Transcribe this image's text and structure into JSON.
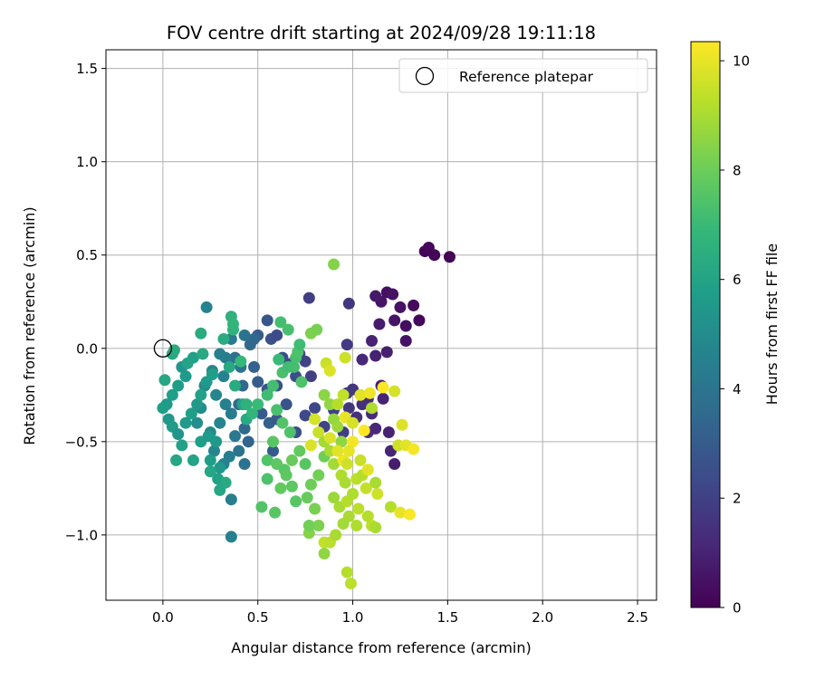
{
  "chart_data": {
    "type": "scatter",
    "title": "FOV centre drift starting at 2024/09/28 19:11:18",
    "xlabel": "Angular distance from reference (arcmin)",
    "ylabel": "Rotation from reference (arcmin)",
    "xlim": [
      -0.3,
      2.6
    ],
    "ylim": [
      -1.35,
      1.6
    ],
    "xticks": [
      0.0,
      0.5,
      1.0,
      1.5,
      2.0,
      2.5
    ],
    "xtick_labels": [
      "0.0",
      "0.5",
      "1.0",
      "1.5",
      "2.0",
      "2.5"
    ],
    "yticks": [
      -1.0,
      -0.5,
      0.0,
      0.5,
      1.0,
      1.5
    ],
    "ytick_labels": [
      "−1.0",
      "−0.5",
      "0.0",
      "0.5",
      "1.0",
      "1.5"
    ],
    "grid": true,
    "legend": {
      "placement": "top-right",
      "label": "Reference platepar"
    },
    "reference_point": {
      "x": 0.0,
      "y": 0.0
    },
    "colorbar": {
      "label": "Hours from first FF file",
      "range": [
        0,
        10.35
      ],
      "ticks": [
        0,
        2,
        4,
        6,
        8,
        10
      ],
      "tick_labels": [
        "0",
        "2",
        "4",
        "6",
        "8",
        "10"
      ],
      "colormap": "viridis",
      "stops": [
        "#440154",
        "#482878",
        "#3e4989",
        "#31688e",
        "#26828e",
        "#1f9e89",
        "#35b779",
        "#6ece58",
        "#b5de2b",
        "#fde725"
      ]
    },
    "points": [
      [
        1.38,
        0.52,
        0.1
      ],
      [
        1.4,
        0.54,
        0.2
      ],
      [
        1.43,
        0.5,
        0.1
      ],
      [
        1.51,
        0.49,
        0.0
      ],
      [
        1.18,
        0.3,
        0.4
      ],
      [
        1.21,
        0.29,
        0.5
      ],
      [
        1.15,
        0.25,
        0.6
      ],
      [
        1.25,
        0.22,
        0.5
      ],
      [
        1.32,
        0.23,
        0.3
      ],
      [
        1.12,
        0.28,
        0.7
      ],
      [
        1.22,
        0.15,
        0.6
      ],
      [
        1.28,
        0.12,
        0.4
      ],
      [
        1.35,
        0.15,
        0.2
      ],
      [
        1.14,
        0.13,
        0.8
      ],
      [
        1.1,
        0.04,
        1.0
      ],
      [
        1.28,
        0.04,
        0.5
      ],
      [
        0.98,
        0.24,
        1.6
      ],
      [
        0.97,
        0.02,
        1.8
      ],
      [
        0.77,
        0.27,
        1.9
      ],
      [
        1.05,
        -0.06,
        1.2
      ],
      [
        1.12,
        -0.04,
        1.0
      ],
      [
        1.18,
        -0.02,
        0.9
      ],
      [
        1.0,
        -0.22,
        1.6
      ],
      [
        1.08,
        -0.27,
        1.3
      ],
      [
        1.15,
        -0.2,
        0.9
      ],
      [
        1.16,
        -0.27,
        1.0
      ],
      [
        1.08,
        -0.45,
        1.4
      ],
      [
        1.12,
        -0.43,
        1.2
      ],
      [
        1.19,
        -0.45,
        1.0
      ],
      [
        1.2,
        -0.55,
        1.1
      ],
      [
        1.22,
        -0.62,
        0.8
      ],
      [
        1.02,
        -0.37,
        1.5
      ],
      [
        0.98,
        -0.32,
        1.7
      ],
      [
        0.97,
        -0.24,
        1.8
      ],
      [
        0.9,
        -0.33,
        2.0
      ],
      [
        0.95,
        -0.45,
        1.9
      ],
      [
        1.1,
        -0.35,
        1.3
      ],
      [
        1.05,
        -0.3,
        1.4
      ],
      [
        0.55,
        0.15,
        2.8
      ],
      [
        0.5,
        0.07,
        3.0
      ],
      [
        0.57,
        0.05,
        2.6
      ],
      [
        0.6,
        0.07,
        2.4
      ],
      [
        0.63,
        -0.05,
        2.5
      ],
      [
        0.68,
        -0.08,
        2.3
      ],
      [
        0.72,
        -0.03,
        2.2
      ],
      [
        0.75,
        -0.07,
        2.1
      ],
      [
        0.7,
        -0.15,
        2.4
      ],
      [
        0.78,
        -0.15,
        2.0
      ],
      [
        0.6,
        -0.2,
        2.6
      ],
      [
        0.55,
        -0.22,
        2.8
      ],
      [
        0.5,
        -0.18,
        3.0
      ],
      [
        0.48,
        -0.1,
        3.2
      ],
      [
        0.52,
        -0.35,
        3.0
      ],
      [
        0.56,
        -0.4,
        3.1
      ],
      [
        0.6,
        -0.38,
        2.9
      ],
      [
        0.65,
        -0.3,
        2.7
      ],
      [
        0.7,
        -0.45,
        2.5
      ],
      [
        0.75,
        -0.36,
        2.3
      ],
      [
        0.8,
        -0.32,
        2.2
      ],
      [
        0.85,
        -0.42,
        2.1
      ],
      [
        0.58,
        -0.55,
        3.0
      ],
      [
        0.45,
        -0.5,
        3.3
      ],
      [
        0.43,
        -0.43,
        3.5
      ],
      [
        0.4,
        -0.3,
        3.6
      ],
      [
        0.42,
        -0.2,
        3.5
      ],
      [
        0.38,
        -0.05,
        3.8
      ],
      [
        0.46,
        0.02,
        3.5
      ],
      [
        0.48,
        0.05,
        3.4
      ],
      [
        0.33,
        -0.05,
        4.3
      ],
      [
        0.3,
        -0.03,
        4.5
      ],
      [
        0.32,
        -0.15,
        4.6
      ],
      [
        0.28,
        -0.25,
        4.8
      ],
      [
        0.33,
        -0.3,
        4.5
      ],
      [
        0.36,
        -0.35,
        4.3
      ],
      [
        0.3,
        -0.4,
        4.7
      ],
      [
        0.25,
        -0.45,
        4.9
      ],
      [
        0.38,
        -0.47,
        4.1
      ],
      [
        0.35,
        -0.58,
        4.4
      ],
      [
        0.32,
        -0.62,
        4.6
      ],
      [
        0.27,
        -0.55,
        4.8
      ],
      [
        0.4,
        -0.55,
        4.0
      ],
      [
        0.43,
        -0.62,
        3.9
      ],
      [
        0.36,
        -0.81,
        4.4
      ],
      [
        0.36,
        -1.01,
        4.5
      ],
      [
        0.23,
        0.22,
        4.6
      ],
      [
        0.36,
        0.05,
        4.2
      ],
      [
        0.43,
        0.07,
        4.0
      ],
      [
        0.41,
        -0.1,
        4.0
      ],
      [
        0.26,
        -0.12,
        4.8
      ],
      [
        0.22,
        -0.2,
        5.0
      ],
      [
        0.2,
        -0.32,
        5.0
      ],
      [
        0.18,
        -0.4,
        5.1
      ],
      [
        0.1,
        -0.1,
        5.4
      ],
      [
        0.12,
        -0.15,
        5.6
      ],
      [
        0.08,
        -0.2,
        5.7
      ],
      [
        0.05,
        -0.25,
        5.8
      ],
      [
        0.02,
        -0.3,
        5.6
      ],
      [
        0.0,
        -0.32,
        5.8
      ],
      [
        0.03,
        -0.38,
        5.5
      ],
      [
        0.05,
        -0.42,
        5.7
      ],
      [
        0.08,
        -0.46,
        5.4
      ],
      [
        0.12,
        -0.4,
        5.6
      ],
      [
        0.15,
        -0.35,
        5.8
      ],
      [
        0.18,
        -0.3,
        5.5
      ],
      [
        0.2,
        -0.25,
        5.9
      ],
      [
        0.23,
        -0.18,
        5.6
      ],
      [
        0.26,
        -0.14,
        5.8
      ],
      [
        0.16,
        -0.05,
        5.9
      ],
      [
        0.13,
        -0.08,
        6.0
      ],
      [
        0.05,
        -0.03,
        6.2
      ],
      [
        0.01,
        -0.17,
        6.1
      ],
      [
        0.07,
        -0.6,
        6.1
      ],
      [
        0.1,
        -0.52,
        5.9
      ],
      [
        0.16,
        -0.6,
        6.0
      ],
      [
        0.2,
        -0.5,
        5.8
      ],
      [
        0.24,
        -0.47,
        5.6
      ],
      [
        0.28,
        -0.5,
        5.5
      ],
      [
        0.25,
        -0.6,
        5.7
      ],
      [
        0.3,
        -0.64,
        5.5
      ],
      [
        0.29,
        -0.7,
        5.9
      ],
      [
        0.25,
        -0.66,
        6.1
      ],
      [
        0.06,
        -0.01,
        6.3
      ],
      [
        0.2,
        0.08,
        6.3
      ],
      [
        0.21,
        -0.03,
        6.2
      ],
      [
        0.32,
        0.05,
        6.4
      ],
      [
        0.35,
        -0.1,
        6.2
      ],
      [
        0.38,
        -0.2,
        6.3
      ],
      [
        0.42,
        -0.3,
        6.0
      ],
      [
        0.44,
        -0.38,
        6.2
      ],
      [
        0.3,
        -0.76,
        6.1
      ],
      [
        0.33,
        -0.72,
        6.2
      ],
      [
        0.36,
        0.17,
        6.6
      ],
      [
        0.37,
        0.13,
        6.8
      ],
      [
        0.37,
        0.1,
        6.7
      ],
      [
        0.41,
        -0.07,
        6.9
      ],
      [
        0.44,
        -0.3,
        6.6
      ],
      [
        0.47,
        -0.35,
        6.8
      ],
      [
        0.5,
        -0.3,
        7.0
      ],
      [
        0.55,
        -0.25,
        7.1
      ],
      [
        0.58,
        -0.2,
        7.2
      ],
      [
        0.61,
        -0.06,
        7.0
      ],
      [
        0.63,
        -0.13,
        7.3
      ],
      [
        0.66,
        -0.1,
        7.1
      ],
      [
        0.69,
        -0.1,
        7.2
      ],
      [
        0.7,
        -0.05,
        7.3
      ],
      [
        0.71,
        -0.02,
        7.4
      ],
      [
        0.72,
        0.02,
        7.1
      ],
      [
        0.62,
        0.14,
        7.2
      ],
      [
        0.66,
        0.1,
        7.3
      ],
      [
        0.73,
        -0.18,
        7.4
      ],
      [
        0.6,
        -0.33,
        7.3
      ],
      [
        0.63,
        -0.4,
        7.5
      ],
      [
        0.67,
        -0.45,
        7.4
      ],
      [
        0.58,
        -0.5,
        7.6
      ],
      [
        0.55,
        -0.6,
        7.5
      ],
      [
        0.6,
        -0.62,
        7.7
      ],
      [
        0.64,
        -0.65,
        7.6
      ],
      [
        0.55,
        -0.7,
        7.4
      ],
      [
        0.52,
        -0.85,
        7.5
      ],
      [
        0.59,
        -0.88,
        7.6
      ],
      [
        0.62,
        -0.75,
        7.8
      ],
      [
        0.65,
        -0.68,
        7.7
      ],
      [
        0.68,
        -0.6,
        7.9
      ],
      [
        0.72,
        -0.55,
        7.8
      ],
      [
        0.75,
        -0.62,
        7.6
      ],
      [
        0.68,
        -0.74,
        7.7
      ],
      [
        0.7,
        -0.82,
        7.6
      ],
      [
        0.76,
        -0.8,
        7.9
      ],
      [
        0.78,
        -0.73,
        8.0
      ],
      [
        0.82,
        -0.68,
        8.1
      ],
      [
        0.85,
        -0.58,
        8.0
      ],
      [
        0.8,
        -0.86,
        8.2
      ],
      [
        0.82,
        -0.95,
        8.3
      ],
      [
        0.77,
        -0.99,
        8.4
      ],
      [
        0.77,
        -0.95,
        8.1
      ],
      [
        0.78,
        0.08,
        8.3
      ],
      [
        0.81,
        0.1,
        8.2
      ],
      [
        0.9,
        0.45,
        8.4
      ],
      [
        0.85,
        -0.25,
        8.5
      ],
      [
        0.88,
        -0.3,
        8.6
      ],
      [
        0.9,
        -0.38,
        8.7
      ],
      [
        0.92,
        -0.42,
        8.8
      ],
      [
        0.94,
        -0.5,
        8.6
      ],
      [
        0.85,
        -0.5,
        8.9
      ],
      [
        0.88,
        -0.55,
        9.0
      ],
      [
        0.9,
        -0.62,
        8.9
      ],
      [
        0.94,
        -0.68,
        9.1
      ],
      [
        0.96,
        -0.72,
        9.0
      ],
      [
        0.9,
        -0.8,
        8.8
      ],
      [
        0.93,
        -0.85,
        9.0
      ],
      [
        0.97,
        -0.82,
        9.2
      ],
      [
        1.0,
        -0.78,
        9.1
      ],
      [
        1.02,
        -0.7,
        9.3
      ],
      [
        1.05,
        -0.68,
        9.2
      ],
      [
        1.07,
        -0.75,
        9.4
      ],
      [
        1.03,
        -0.86,
        9.3
      ],
      [
        1.08,
        -0.9,
        9.2
      ],
      [
        1.1,
        -0.95,
        9.3
      ],
      [
        1.02,
        -0.95,
        9.1
      ],
      [
        0.98,
        -0.9,
        9.0
      ],
      [
        0.95,
        -0.94,
        8.9
      ],
      [
        1.12,
        -0.96,
        9.0
      ],
      [
        1.2,
        -0.85,
        9.2
      ],
      [
        1.1,
        -0.32,
        9.1
      ],
      [
        0.86,
        -0.08,
        9.5
      ],
      [
        0.88,
        -0.12,
        9.8
      ],
      [
        0.85,
        -1.04,
        9.4
      ],
      [
        0.85,
        -1.1,
        8.6
      ],
      [
        0.88,
        -1.04,
        9.3
      ],
      [
        0.91,
        -1.0,
        9.0
      ],
      [
        0.97,
        -1.2,
        9.2
      ],
      [
        0.99,
        -1.26,
        9.3
      ],
      [
        1.04,
        -0.25,
        9.9
      ],
      [
        1.09,
        -0.24,
        10.1
      ],
      [
        1.16,
        -0.21,
        10.3
      ],
      [
        1.22,
        -0.23,
        9.7
      ],
      [
        1.26,
        -0.41,
        9.8
      ],
      [
        1.24,
        -0.52,
        9.6
      ],
      [
        1.28,
        -0.52,
        9.9
      ],
      [
        1.32,
        -0.54,
        10.2
      ],
      [
        1.25,
        -0.88,
        10.0
      ],
      [
        1.3,
        -0.89,
        10.3
      ],
      [
        1.06,
        -0.44,
        10.4
      ],
      [
        1.0,
        -0.5,
        10.2
      ],
      [
        0.98,
        -0.55,
        10.0
      ],
      [
        0.95,
        -0.6,
        10.1
      ],
      [
        0.92,
        -0.55,
        9.9
      ],
      [
        0.96,
        -0.37,
        10.0
      ],
      [
        1.0,
        -0.4,
        9.7
      ],
      [
        0.97,
        -0.62,
        9.6
      ],
      [
        0.88,
        -0.48,
        9.8
      ],
      [
        0.82,
        -0.45,
        9.5
      ],
      [
        0.8,
        -0.38,
        9.7
      ],
      [
        0.95,
        -0.25,
        9.4
      ],
      [
        0.92,
        -0.3,
        9.2
      ],
      [
        1.04,
        -0.6,
        9.5
      ],
      [
        1.08,
        -0.65,
        9.9
      ],
      [
        1.13,
        -0.78,
        9.6
      ],
      [
        1.12,
        -0.72,
        9.0
      ],
      [
        0.96,
        -0.05,
        9.6
      ],
      [
        0.78,
        -0.52,
        9.8
      ]
    ]
  }
}
